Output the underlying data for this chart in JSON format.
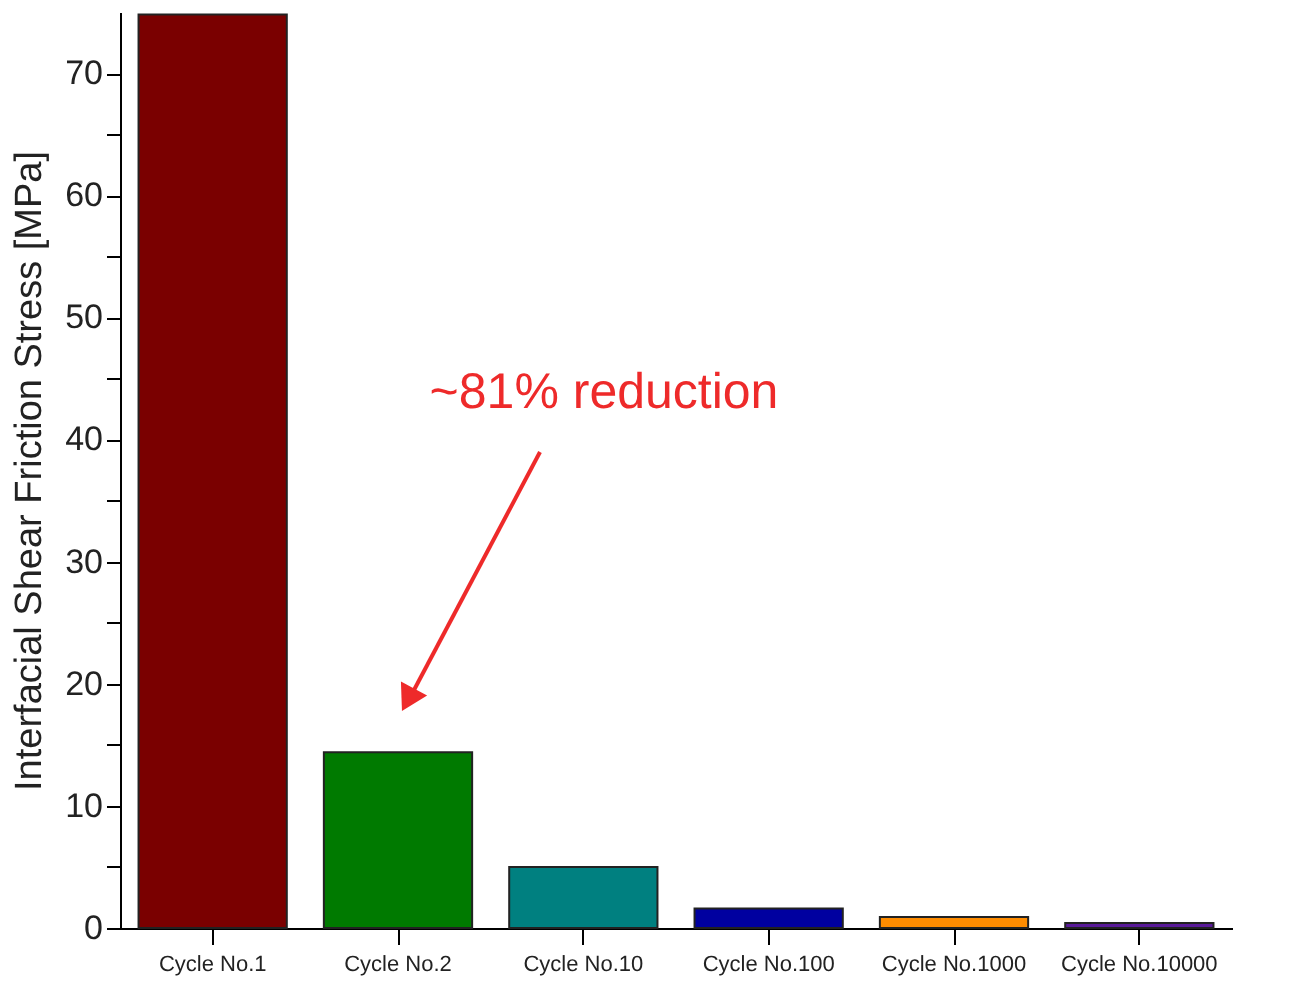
{
  "chart_data": {
    "type": "bar",
    "ylabel": "Interfacial Shear Friction Stress [MPa]",
    "categories": [
      "Cycle No.1",
      "Cycle No.2",
      "Cycle No.10",
      "Cycle No.100",
      "Cycle No.1000",
      "Cycle No.10000"
    ],
    "values": [
      74.8,
      14.4,
      5.0,
      1.6,
      0.9,
      0.4
    ],
    "colors": [
      "#7a0000",
      "#007a00",
      "#008080",
      "#0000a0",
      "#ff8c00",
      "#5a1a9a"
    ],
    "ylim": [
      0,
      75
    ],
    "yticks": [
      0,
      {
        "value": 5,
        "label": null
      },
      10,
      {
        "value": 15,
        "label": null
      },
      20,
      {
        "value": 25,
        "label": null
      },
      30,
      {
        "value": 35,
        "label": null
      },
      40,
      {
        "value": 45,
        "label": null
      },
      50,
      {
        "value": 55,
        "label": null
      },
      60,
      {
        "value": 65,
        "label": null
      },
      70
    ],
    "grid": false,
    "annotations": [
      "~81% reduction"
    ]
  }
}
